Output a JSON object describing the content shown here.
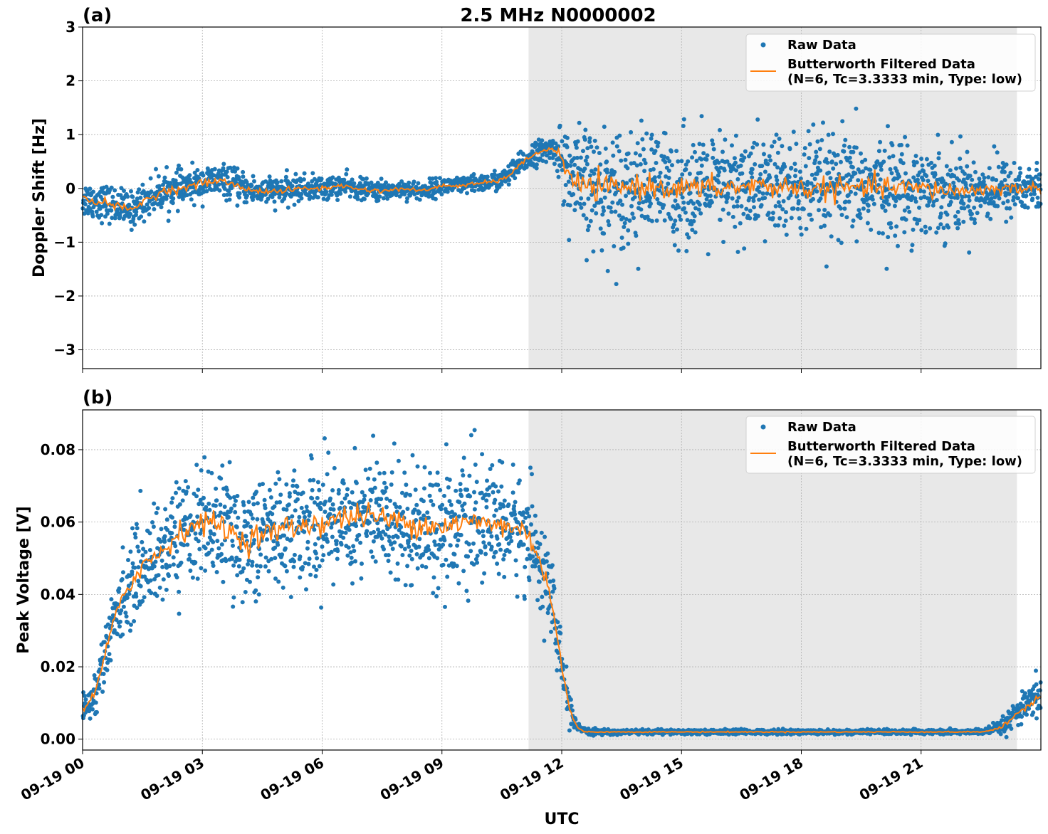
{
  "figure": {
    "title": "2.5 MHz N0000002",
    "xlabel": "UTC"
  },
  "colors": {
    "raw": "#1f77b4",
    "filtered": "#ff7f0e",
    "shade": "#e8e8e8",
    "grid": "#b0b0b0"
  },
  "legend": {
    "raw_label": "Raw Data",
    "filtered_label_line1": "Butterworth Filtered Data",
    "filtered_label_line2": "(N=6, Tc=3.3333 min, Type: low)"
  },
  "chart_data": [
    {
      "type": "scatter",
      "panel_label": "(a)",
      "ylabel": "Doppler Shift [Hz]",
      "xlim_hours": [
        0,
        24
      ],
      "ylim": [
        -3.35,
        3.0
      ],
      "yticks": [
        -3,
        -2,
        -1,
        0,
        1,
        2,
        3
      ],
      "ytick_labels": [
        "−3",
        "−2",
        "−1",
        "0",
        "1",
        "2",
        "3"
      ],
      "xticks_hours": [
        0,
        3,
        6,
        9,
        12,
        15,
        18,
        21
      ],
      "xtick_labels": [
        "09-19 00",
        "09-19 03",
        "09-19 06",
        "09-19 09",
        "09-19 12",
        "09-19 15",
        "09-19 18",
        "09-19 21"
      ],
      "grid": true,
      "legend_position": "top-right",
      "shaded_interval_hours": [
        11.17,
        23.4
      ],
      "filtered_hours": [
        0,
        0.5,
        1,
        1.2,
        1.5,
        2,
        2.5,
        3,
        3.5,
        4,
        4.5,
        5,
        5.5,
        6,
        6.5,
        7,
        7.5,
        8,
        8.5,
        9,
        9.5,
        10,
        10.5,
        11,
        11.3,
        11.6,
        11.8,
        12,
        12.2,
        12.5,
        13,
        14,
        15,
        16,
        17,
        18,
        19,
        20,
        21,
        22,
        23,
        24
      ],
      "filtered_values": [
        -0.2,
        -0.25,
        -0.35,
        -0.42,
        -0.25,
        -0.05,
        0.0,
        0.1,
        0.15,
        0.0,
        -0.05,
        -0.05,
        0.0,
        0.0,
        0.05,
        -0.02,
        -0.05,
        0.0,
        -0.05,
        0.05,
        0.05,
        0.1,
        0.15,
        0.45,
        0.65,
        0.7,
        0.75,
        0.55,
        0.15,
        0.05,
        0.0,
        0.05,
        0.0,
        0.0,
        0.05,
        0.0,
        0.0,
        0.02,
        0.0,
        -0.05,
        0.0,
        0.0
      ],
      "raw_spread_hours": [
        0,
        2,
        4,
        6,
        8,
        10,
        11,
        11.8,
        12.2,
        13,
        15,
        18,
        21,
        23,
        24
      ],
      "raw_spread_values": [
        0.3,
        0.3,
        0.25,
        0.2,
        0.15,
        0.15,
        0.2,
        0.2,
        0.9,
        1.0,
        0.9,
        0.9,
        0.8,
        0.5,
        0.4
      ]
    },
    {
      "type": "scatter",
      "panel_label": "(b)",
      "ylabel": "Peak Voltage [V]",
      "xlim_hours": [
        0,
        24
      ],
      "ylim": [
        -0.003,
        0.091
      ],
      "yticks": [
        0.0,
        0.02,
        0.04,
        0.06,
        0.08
      ],
      "ytick_labels": [
        "0.00",
        "0.02",
        "0.04",
        "0.06",
        "0.08"
      ],
      "xticks_hours": [
        0,
        3,
        6,
        9,
        12,
        15,
        18,
        21
      ],
      "xtick_labels": [
        "09-19 00",
        "09-19 03",
        "09-19 06",
        "09-19 09",
        "09-19 12",
        "09-19 15",
        "09-19 18",
        "09-19 21"
      ],
      "grid": true,
      "legend_position": "top-right",
      "shaded_interval_hours": [
        11.17,
        23.4
      ],
      "filtered_hours": [
        0,
        0.3,
        0.6,
        1,
        1.5,
        2,
        2.5,
        3,
        3.5,
        4,
        5,
        6,
        7,
        8,
        9,
        10,
        10.5,
        11,
        11.3,
        11.6,
        11.8,
        12,
        12.2,
        12.4,
        12.6,
        13,
        15,
        18,
        21,
        22.5,
        23,
        23.5,
        24
      ],
      "filtered_values": [
        0.008,
        0.012,
        0.025,
        0.04,
        0.048,
        0.052,
        0.058,
        0.06,
        0.059,
        0.055,
        0.058,
        0.06,
        0.062,
        0.06,
        0.059,
        0.06,
        0.059,
        0.058,
        0.054,
        0.045,
        0.035,
        0.02,
        0.008,
        0.003,
        0.002,
        0.002,
        0.002,
        0.002,
        0.002,
        0.002,
        0.003,
        0.008,
        0.012
      ],
      "raw_spread_hours": [
        0,
        0.6,
        1.5,
        3,
        6,
        9,
        11,
        11.6,
        12,
        12.4,
        13,
        22.5,
        23.4,
        24
      ],
      "raw_spread_values": [
        0.004,
        0.008,
        0.012,
        0.014,
        0.015,
        0.015,
        0.014,
        0.012,
        0.006,
        0.001,
        0.0006,
        0.0006,
        0.003,
        0.005
      ]
    }
  ]
}
